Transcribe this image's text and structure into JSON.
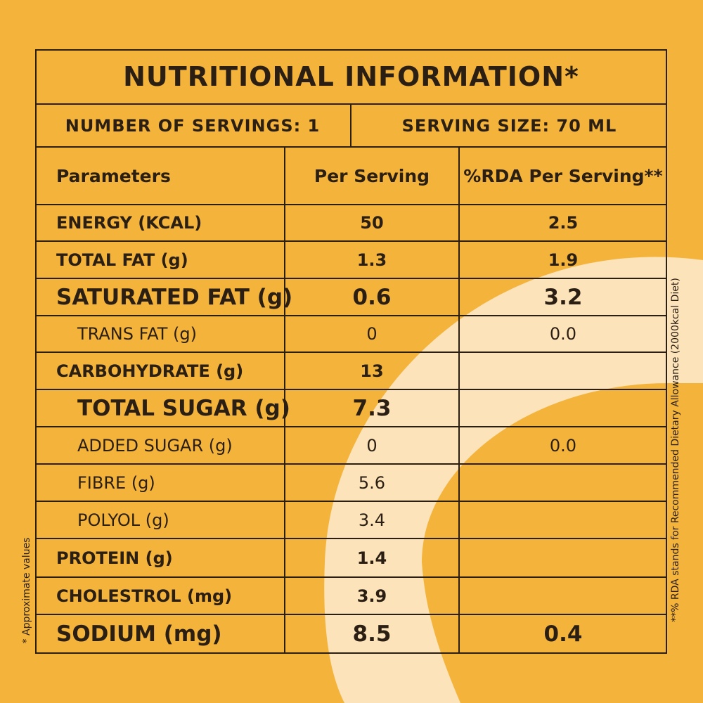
{
  "colors": {
    "background": "#f4b43c",
    "arc": "#fde3ba",
    "ink": "#2b1f14"
  },
  "title": "NUTRITIONAL INFORMATION*",
  "servings": {
    "count_label": "NUMBER OF SERVINGS: 1",
    "size_label": "SERVING SIZE: 70 ML"
  },
  "headers": {
    "parameters": "Parameters",
    "per_serving": "Per Serving",
    "rda": "%RDA Per Serving**"
  },
  "rows": [
    {
      "name": "ENERGY (KCAL)",
      "per_serving": "50",
      "rda": "2.5"
    },
    {
      "name": "TOTAL FAT (g)",
      "per_serving": "1.3",
      "rda": "1.9"
    },
    {
      "name": "SATURATED FAT (g)",
      "per_serving": "0.6",
      "rda": "3.2"
    },
    {
      "name": "TRANS FAT (g)",
      "per_serving": "0",
      "rda": "0.0"
    },
    {
      "name": "CARBOHYDRATE (g)",
      "per_serving": "13",
      "rda": ""
    },
    {
      "name": "TOTAL SUGAR (g)",
      "per_serving": "7.3",
      "rda": ""
    },
    {
      "name": "ADDED SUGAR (g)",
      "per_serving": "0",
      "rda": "0.0"
    },
    {
      "name": "FIBRE (g)",
      "per_serving": "5.6",
      "rda": ""
    },
    {
      "name": "POLYOL (g)",
      "per_serving": "3.4",
      "rda": ""
    },
    {
      "name": "PROTEIN (g)",
      "per_serving": "1.4",
      "rda": ""
    },
    {
      "name": "CHOLESTROL (mg)",
      "per_serving": "3.9",
      "rda": ""
    },
    {
      "name": "SODIUM (mg)",
      "per_serving": "8.5",
      "rda": "0.4"
    }
  ],
  "footnotes": {
    "approximate": "* Approximate values",
    "rda_note": "**% RDA stands for Recommended Dietary Allowance (2000kcal Diet)"
  }
}
